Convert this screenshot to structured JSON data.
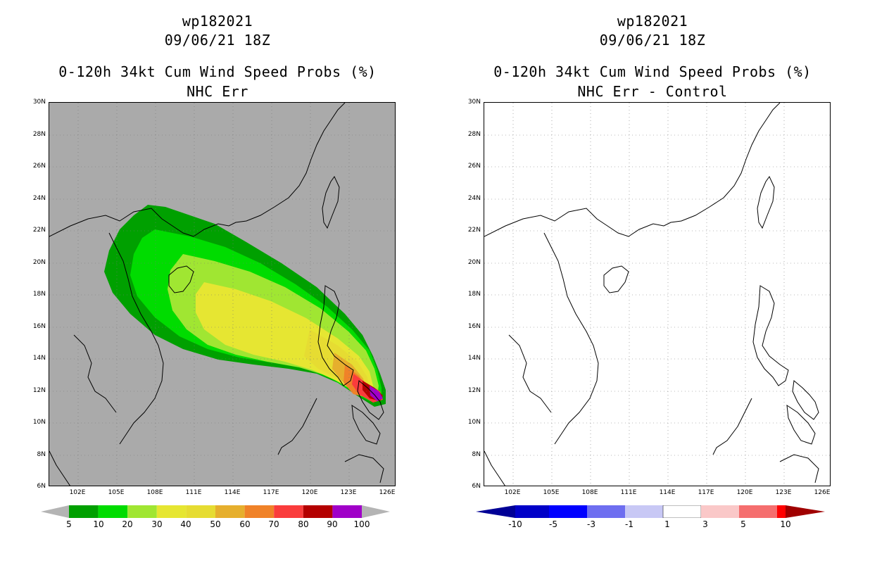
{
  "panels": [
    {
      "id": "left",
      "title_storm": "wp182021",
      "title_date": "09/06/21 18Z",
      "title_product": "0-120h 34kt Cum Wind Speed Probs (%)",
      "title_sub": "NHC Err",
      "background": "#aaaaaa",
      "colorbar_labels": [
        "5",
        "10",
        "20",
        "30",
        "40",
        "50",
        "60",
        "70",
        "80",
        "90",
        "100"
      ],
      "colorbar_colors": [
        "#00a000",
        "#00dc00",
        "#a0e632",
        "#e6e632",
        "#e6dc32",
        "#e6af2d",
        "#f08228",
        "#fa3c3c",
        "#b40000",
        "#a000c8"
      ],
      "colorbar_end_color": "#b4b4b4"
    },
    {
      "id": "right",
      "title_storm": "wp182021",
      "title_date": "09/06/21 18Z",
      "title_product": "0-120h 34kt Cum Wind Speed Probs (%)",
      "title_sub": "NHC Err - Control",
      "background": "#ffffff",
      "colorbar_labels": [
        "-10",
        "-5",
        "-3",
        "-1",
        "1",
        "3",
        "5",
        "10"
      ],
      "colorbar_colors": [
        "#0000c8",
        "#0000ff",
        "#6e6ef0",
        "#c8c8f5",
        "#ffffff",
        "#fac8c8",
        "#f56e6e",
        "#ff0000"
      ],
      "colorbar_low_color": "#000096",
      "colorbar_high_color": "#a00000"
    }
  ],
  "y_labels": [
    "30N",
    "28N",
    "26N",
    "24N",
    "22N",
    "20N",
    "18N",
    "16N",
    "14N",
    "12N",
    "10N",
    "8N",
    "6N"
  ],
  "x_labels": [
    "102E",
    "105E",
    "108E",
    "111E",
    "114E",
    "117E",
    "120E",
    "123E",
    "126E"
  ]
}
